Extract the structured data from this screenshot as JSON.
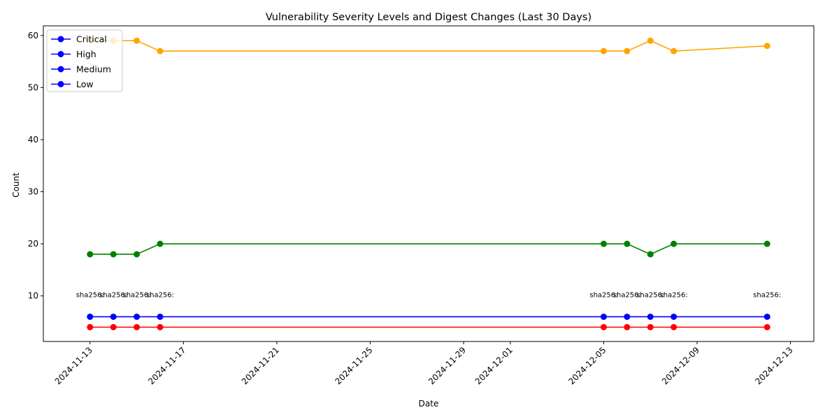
{
  "chart_data": {
    "type": "line",
    "title": "Vulnerability Severity Levels and Digest Changes (Last 30 Days)",
    "xlabel": "Date",
    "ylabel": "Count",
    "x": [
      "2024-11-13",
      "2024-11-14",
      "2024-11-15",
      "2024-11-16",
      "2024-12-05",
      "2024-12-06",
      "2024-12-07",
      "2024-12-08",
      "2024-12-12"
    ],
    "x_ticks": [
      "2024-11-13",
      "2024-11-17",
      "2024-11-21",
      "2024-11-25",
      "2024-11-29",
      "2024-12-01",
      "2024-12-05",
      "2024-12-09",
      "2024-12-13"
    ],
    "xlim": [
      "2024-11-11",
      "2024-12-14"
    ],
    "y_ticks": [
      10,
      20,
      30,
      40,
      50,
      60
    ],
    "ylim": [
      1.25,
      61.85
    ],
    "series": [
      {
        "name": "Critical",
        "legend_color": "#0000ff",
        "color": "#ff0000",
        "values": [
          4,
          4,
          4,
          4,
          4,
          4,
          4,
          4,
          4
        ]
      },
      {
        "name": "High",
        "legend_color": "#0000ff",
        "color": "#0000ff",
        "values": [
          6,
          6,
          6,
          6,
          6,
          6,
          6,
          6,
          6
        ]
      },
      {
        "name": "Medium",
        "legend_color": "#0000ff",
        "color": "#008000",
        "values": [
          18,
          18,
          18,
          20,
          20,
          20,
          18,
          20,
          20
        ]
      },
      {
        "name": "Low",
        "legend_color": "#0000ff",
        "color": "#ffa500",
        "values": [
          59,
          59,
          59,
          57,
          57,
          57,
          59,
          57,
          58
        ]
      }
    ],
    "digest_annotations": {
      "y": 10,
      "labels": [
        "sha256:",
        "sha256:",
        "sha256:",
        "sha256:",
        "sha256:",
        "sha256:",
        "sha256:",
        "sha256:",
        "sha256:"
      ]
    },
    "legend_position": "upper-left",
    "grid": false
  }
}
